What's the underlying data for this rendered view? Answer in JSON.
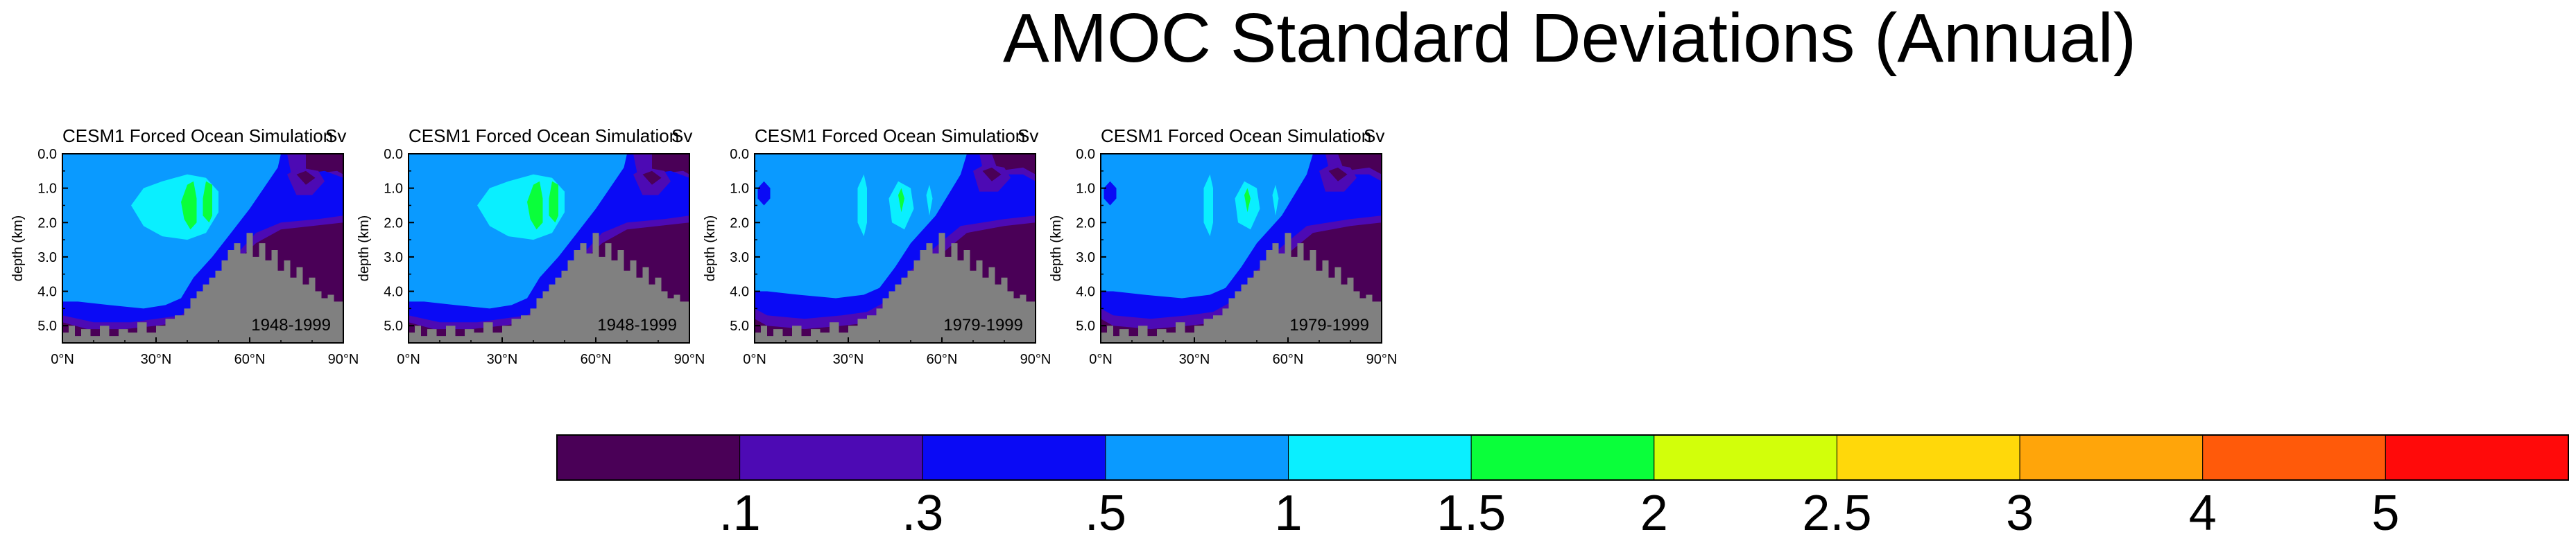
{
  "title": "AMOC Standard Deviations (Annual)",
  "colors": {
    "land": "#808080",
    "levels": [
      "#4a0057",
      "#4d0ab4",
      "#0a0af5",
      "#0a9aff",
      "#0aefff",
      "#0aff3a",
      "#d2ff0a",
      "#ffd80a",
      "#ffa50a",
      "#ff5a0a",
      "#ff0a0a"
    ]
  },
  "panels": [
    {
      "title": "CESM1 Forced Ocean Simulation",
      "units": "Sv",
      "period": "1948-1999"
    },
    {
      "title": "CESM1 Forced Ocean Simulation",
      "units": "Sv",
      "period": "1948-1999"
    },
    {
      "title": "CESM1 Forced Ocean Simulation",
      "units": "Sv",
      "period": "1979-1999"
    },
    {
      "title": "CESM1 Forced Ocean Simulation",
      "units": "Sv",
      "period": "1979-1999"
    }
  ],
  "chart_data": {
    "type": "heatmap",
    "ylabel": "depth (km)",
    "xlim": [
      0,
      90
    ],
    "ylim": [
      0.0,
      5.5
    ],
    "x_ticks": [
      "0°N",
      "30°N",
      "60°N",
      "90°N"
    ],
    "y_ticks": [
      "0.0",
      "1.0",
      "2.0",
      "3.0",
      "4.0",
      "5.0"
    ],
    "colorbar_labels": [
      ".1",
      ".3",
      ".5",
      "1",
      "1.5",
      "2",
      "2.5",
      "3",
      "4",
      "5"
    ],
    "colorbar_levels": [
      0.1,
      0.3,
      0.5,
      1,
      1.5,
      2,
      2.5,
      3,
      4,
      5
    ]
  }
}
